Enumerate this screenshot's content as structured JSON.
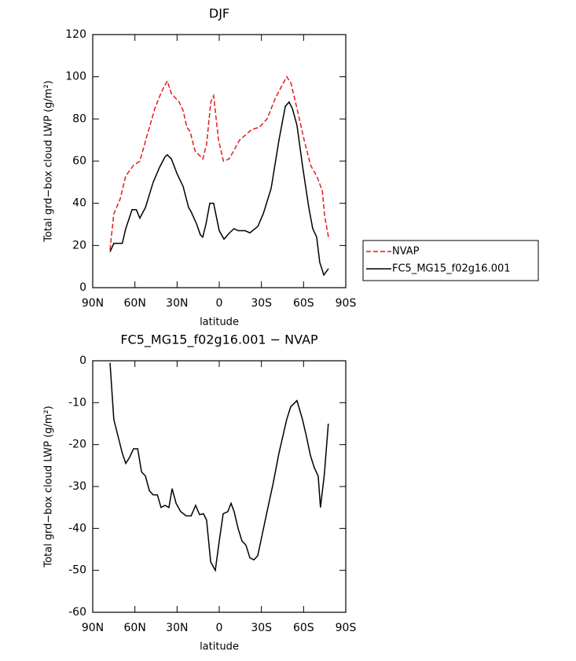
{
  "chart_data": [
    {
      "type": "line",
      "title": "DJF",
      "x_label": "latitude",
      "y_label": "Total grd−box cloud LWP (g/m²)",
      "xlim": [
        90,
        -90
      ],
      "xticks": [
        {
          "value": 90,
          "label": "90N"
        },
        {
          "value": 60,
          "label": "60N"
        },
        {
          "value": 30,
          "label": "30N"
        },
        0,
        {
          "value": -30,
          "label": "30S"
        },
        {
          "value": -60,
          "label": "60S"
        },
        {
          "value": -90,
          "label": "90S"
        }
      ],
      "ylim": [
        0,
        120
      ],
      "yticks": [
        0,
        20,
        40,
        60,
        80,
        100,
        120
      ],
      "legend": "right",
      "series": [
        {
          "name": "NVAP",
          "color": "#e41a1c",
          "line_style": "dashed",
          "x": [
            77.7,
            75,
            70.5,
            66.5,
            61,
            56.5,
            51.4,
            45.8,
            41,
            37,
            34,
            28.5,
            25.7,
            23,
            20.7,
            17.3,
            11.7,
            9,
            6,
            4,
            0.5,
            -3,
            -7,
            -14.5,
            -18,
            -23,
            -28.5,
            -34,
            -40,
            -48,
            -51,
            -55.3,
            -60.4,
            -65,
            -69.3,
            -73.3,
            -75,
            -77.7
          ],
          "values": [
            18,
            35,
            42,
            53,
            58,
            60,
            72,
            85,
            93,
            98,
            92,
            88,
            84,
            76,
            74,
            65,
            61,
            68,
            88,
            91,
            70,
            60,
            61,
            70,
            72,
            75,
            76,
            80,
            90,
            100,
            97,
            85,
            70,
            58,
            53,
            46,
            34,
            24
          ]
        },
        {
          "name": "FC5_MG15_f02g16.001",
          "color": "#000000",
          "line_style": "solid",
          "x": [
            77.7,
            75,
            69,
            66.5,
            62,
            59,
            56.5,
            52.5,
            47,
            42.5,
            38.6,
            37,
            34,
            30,
            25.7,
            21.8,
            20,
            16,
            13.4,
            11.7,
            9.5,
            6.7,
            4,
            0,
            -3.4,
            -7.3,
            -10.6,
            -13.4,
            -18.4,
            -21.8,
            -27.4,
            -31.3,
            -36.9,
            -42.5,
            -47,
            -49.7,
            -52,
            -55.3,
            -59.2,
            -63.7,
            -66.5,
            -69.3,
            -71.5,
            -74.4,
            -77.7
          ],
          "values": [
            17,
            21,
            21,
            28,
            37,
            37,
            33,
            38,
            50,
            57,
            62,
            63,
            61,
            54,
            48,
            38,
            36,
            30,
            25,
            24,
            30,
            40,
            40,
            27,
            23,
            26,
            28,
            27,
            27,
            26,
            29,
            35,
            47,
            70,
            86,
            88,
            85,
            77,
            58,
            38,
            28,
            24,
            12,
            6,
            9
          ]
        }
      ]
    },
    {
      "type": "line",
      "title": "FC5_MG15_f02g16.001 − NVAP",
      "x_label": "latitude",
      "y_label": "Total grd−box cloud LWP (g/m²)",
      "xlim": [
        90,
        -90
      ],
      "xticks": [
        {
          "value": 90,
          "label": "90N"
        },
        {
          "value": 60,
          "label": "60N"
        },
        {
          "value": 30,
          "label": "30N"
        },
        0,
        {
          "value": -30,
          "label": "30S"
        },
        {
          "value": -60,
          "label": "60S"
        },
        {
          "value": -90,
          "label": "90S"
        }
      ],
      "ylim": [
        -60,
        0
      ],
      "yticks": [
        -60,
        -50,
        -40,
        -30,
        -20,
        -10,
        0
      ],
      "color": "#000000",
      "x": [
        77.7,
        75,
        72,
        69,
        66.5,
        63.7,
        61,
        58,
        55.3,
        52.5,
        49.7,
        47,
        44,
        41.4,
        38.6,
        35.8,
        33.5,
        30.7,
        27.4,
        23.5,
        20,
        16.8,
        14,
        11.2,
        9,
        6.1,
        2.8,
        0,
        -2.8,
        -6.1,
        -8.4,
        -10.6,
        -13.4,
        -16.2,
        -19,
        -21.8,
        -24.6,
        -27.4,
        -34,
        -38.5,
        -42.5,
        -48,
        -50.8,
        -55.3,
        -59.2,
        -62,
        -64.8,
        -67.6,
        -70.4,
        -72,
        -74.8,
        -77.6
      ],
      "values": [
        -0.5,
        -14,
        -18,
        -22,
        -24.5,
        -23,
        -21,
        -21,
        -26.5,
        -27.5,
        -31,
        -32,
        -32,
        -35,
        -34.5,
        -35,
        -30.5,
        -34,
        -36,
        -37,
        -37,
        -34.5,
        -36.7,
        -36.5,
        -38,
        -48,
        -50,
        -43,
        -36.5,
        -36,
        -34,
        -36,
        -40,
        -43,
        -44,
        -47,
        -47.5,
        -46.5,
        -36,
        -29,
        -22,
        -14,
        -11,
        -9.5,
        -14,
        -18,
        -22.5,
        -25.5,
        -27.5,
        -35,
        -27,
        -15
      ]
    }
  ]
}
